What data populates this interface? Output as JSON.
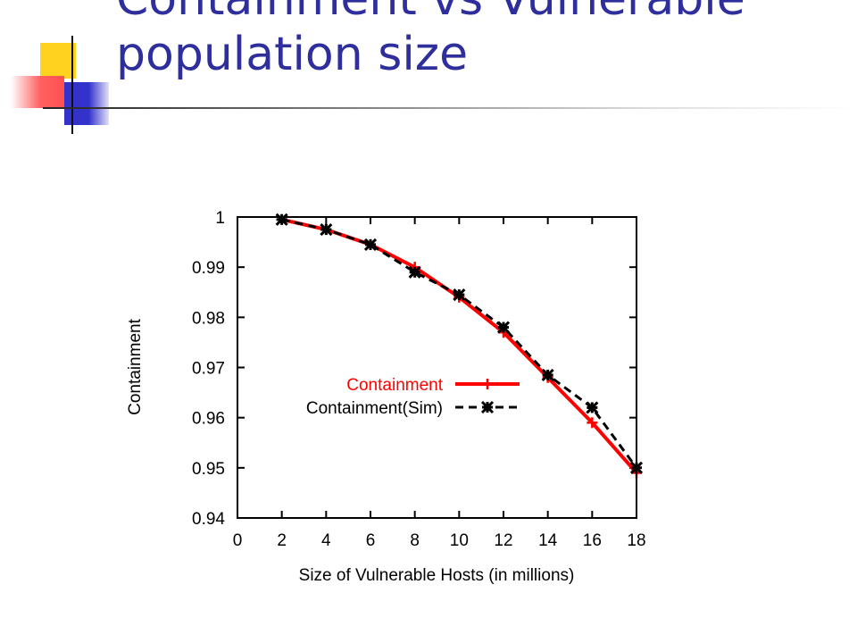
{
  "slide": {
    "title_line1": "Containment vs Vulnerable",
    "title_line2": "population size",
    "colors": {
      "title": "#2e2e9c",
      "logo_yellow": "#ffd21f",
      "logo_red": "#ff5a5a",
      "logo_blue": "#3333cc"
    }
  },
  "chart_data": {
    "type": "line",
    "title": "",
    "xlabel": "Size of Vulnerable Hosts (in millions)",
    "ylabel": "Containment",
    "xlim": [
      0,
      18
    ],
    "ylim": [
      0.94,
      1
    ],
    "xticks": [
      0,
      2,
      4,
      6,
      8,
      10,
      12,
      14,
      16,
      18
    ],
    "yticks": [
      0.94,
      0.95,
      0.96,
      0.97,
      0.98,
      0.99,
      1
    ],
    "ytick_labels": [
      "0.94",
      "0.95",
      "0.96",
      "0.97",
      "0.98",
      "0.99",
      "1"
    ],
    "grid": false,
    "legend_position": "center-right",
    "series": [
      {
        "name": "Containment",
        "color": "#ff0000",
        "style": "solid",
        "marker": "plus",
        "x": [
          2,
          4,
          6,
          8,
          10,
          12,
          14,
          16,
          18
        ],
        "y": [
          0.9995,
          0.9975,
          0.9945,
          0.99,
          0.984,
          0.977,
          0.968,
          0.959,
          0.949
        ]
      },
      {
        "name": "Containment(Sim)",
        "color": "#000000",
        "style": "dashed",
        "marker": "star",
        "x": [
          2,
          4,
          6,
          8,
          10,
          12,
          14,
          16,
          18
        ],
        "y": [
          0.9995,
          0.9975,
          0.9945,
          0.989,
          0.9845,
          0.978,
          0.9685,
          0.962,
          0.95
        ]
      }
    ]
  }
}
